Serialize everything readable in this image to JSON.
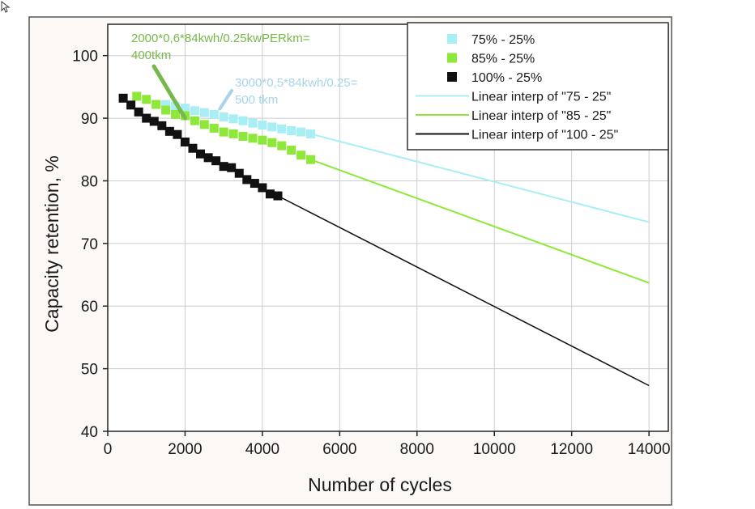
{
  "colors": {
    "c75": "#a8eef5",
    "c85": "#8ee83a",
    "c100": "#111111",
    "frame_bg": "#fcf8f6",
    "grid": "#cccccc",
    "anno_green": "#77b84a",
    "anno_blue": "#a8d4e8"
  },
  "chart_data": {
    "type": "scatter",
    "xlabel": "Number of cycles",
    "ylabel": "Capacity retention, %",
    "xlim": [
      0,
      14500
    ],
    "ylim": [
      40,
      105
    ],
    "xticks": [
      0,
      2000,
      4000,
      6000,
      8000,
      10000,
      12000,
      14000
    ],
    "yticks": [
      40,
      50,
      60,
      70,
      80,
      90,
      100
    ],
    "grid": true,
    "legend_position": "top-right",
    "series": [
      {
        "name": "75% - 25%",
        "color_key": "c75",
        "x": [
          1500,
          1750,
          2000,
          2250,
          2500,
          2750,
          3000,
          3250,
          3500,
          3750,
          4000,
          4250,
          4500,
          4750,
          5000,
          5250
        ],
        "y": [
          92.2,
          91.9,
          91.6,
          91.2,
          90.9,
          90.6,
          90.2,
          89.9,
          89.6,
          89.2,
          88.9,
          88.6,
          88.3,
          88.0,
          87.8,
          87.5
        ]
      },
      {
        "name": "85% - 25%",
        "color_key": "c85",
        "x": [
          750,
          1000,
          1250,
          1500,
          1750,
          2000,
          2250,
          2500,
          2750,
          3000,
          3250,
          3500,
          3750,
          4000,
          4250,
          4500,
          4750,
          5000,
          5250
        ],
        "y": [
          93.5,
          93.0,
          92.2,
          91.3,
          90.6,
          90.4,
          89.6,
          89.0,
          88.4,
          87.8,
          87.5,
          87.1,
          86.8,
          86.5,
          86.1,
          85.6,
          84.9,
          84.1,
          83.4
        ]
      },
      {
        "name": "100% - 25%",
        "color_key": "c100",
        "x": [
          400,
          600,
          800,
          1000,
          1200,
          1400,
          1600,
          1800,
          2000,
          2200,
          2400,
          2600,
          2800,
          3000,
          3200,
          3400,
          3600,
          3800,
          4000,
          4200,
          4400
        ],
        "y": [
          93.2,
          92.1,
          91.0,
          90.0,
          89.5,
          88.8,
          87.9,
          87.4,
          86.2,
          85.2,
          84.3,
          83.7,
          83.2,
          82.3,
          82.1,
          81.2,
          80.2,
          79.6,
          78.9,
          77.9,
          77.6
        ]
      }
    ],
    "fits": [
      {
        "name": "Linear interp of \"75 - 25\"",
        "color_key": "c75",
        "x": [
          5250,
          14000
        ],
        "y": [
          87.5,
          73.4
        ]
      },
      {
        "name": "Linear interp of \"85 - 25\"",
        "color_key": "c85",
        "x": [
          5250,
          14000
        ],
        "y": [
          83.4,
          63.7
        ]
      },
      {
        "name": "Linear interp of \"100 - 25\"",
        "color_key": "c100",
        "x": [
          4400,
          14000
        ],
        "y": [
          77.6,
          47.3
        ]
      }
    ],
    "annotations": [
      {
        "id": "anno-400tkm",
        "lines": [
          "2000*0,6*84kwh/0.25kwPERkm=",
          "400tkm"
        ],
        "color_key": "anno_green",
        "arrow_to": [
          2000,
          90
        ]
      },
      {
        "id": "anno-500tkm",
        "lines": [
          "3000*0,5*84kwh/0.25=",
          "500 tkm"
        ],
        "color_key": "anno_blue",
        "arrow_to": [
          2900,
          91.5
        ]
      }
    ]
  }
}
